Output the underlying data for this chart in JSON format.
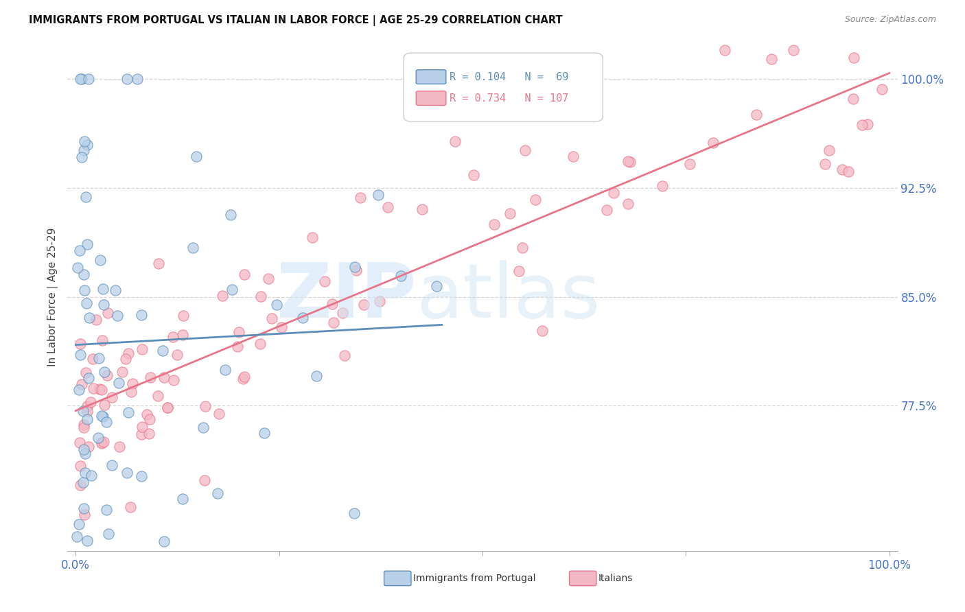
{
  "title": "IMMIGRANTS FROM PORTUGAL VS ITALIAN IN LABOR FORCE | AGE 25-29 CORRELATION CHART",
  "source": "Source: ZipAtlas.com",
  "ylabel": "In Labor Force | Age 25-29",
  "ytick_labels": [
    "100.0%",
    "92.5%",
    "85.0%",
    "77.5%"
  ],
  "ytick_values": [
    1.0,
    0.925,
    0.85,
    0.775
  ],
  "xlim": [
    -0.01,
    1.01
  ],
  "ylim": [
    0.675,
    1.025
  ],
  "portugal_color": "#5B8DB8",
  "portugal_fill": "#B8D0E8",
  "italian_color": "#E8748A",
  "italian_fill": "#F4B8C4",
  "portugal_R": 0.104,
  "portugal_N": 69,
  "italian_R": 0.734,
  "italian_N": 107,
  "background_color": "#ffffff",
  "grid_color": "#cccccc",
  "axis_label_color": "#4472C4"
}
